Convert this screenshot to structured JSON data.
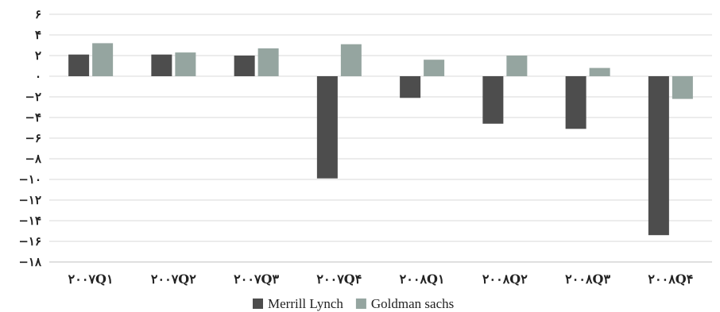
{
  "chart_data": {
    "type": "bar",
    "categories": [
      "۲۰۰۷Q۱",
      "۲۰۰۷Q۲",
      "۲۰۰۷Q۳",
      "۲۰۰۷Q۴",
      "۲۰۰۸Q۱",
      "۲۰۰۸Q۲",
      "۲۰۰۸Q۳",
      "۲۰۰۸Q۴"
    ],
    "series": [
      {
        "name": "Merrill Lynch",
        "color": "#4d4d4d",
        "values": [
          2.1,
          2.1,
          2.0,
          -9.9,
          -2.1,
          -4.6,
          -5.1,
          -15.4
        ]
      },
      {
        "name": "Goldman sachs",
        "color": "#95a5a0",
        "values": [
          3.2,
          2.3,
          2.7,
          3.1,
          1.6,
          2.0,
          0.8,
          -2.2
        ]
      }
    ],
    "ylim": [
      -18,
      6
    ],
    "yticks": [
      6,
      4,
      2,
      0,
      -2,
      -4,
      -6,
      -8,
      -10,
      -12,
      -14,
      -16,
      -18
    ],
    "ytick_labels": [
      "۶",
      "۴",
      "۲",
      "۰",
      "−۲",
      "−۴",
      "−۶",
      "−۸",
      "−۱۰",
      "−۱۲",
      "−۱۴",
      "−۱۶",
      "−۱۸"
    ],
    "grid": true,
    "legend_position": "bottom"
  }
}
